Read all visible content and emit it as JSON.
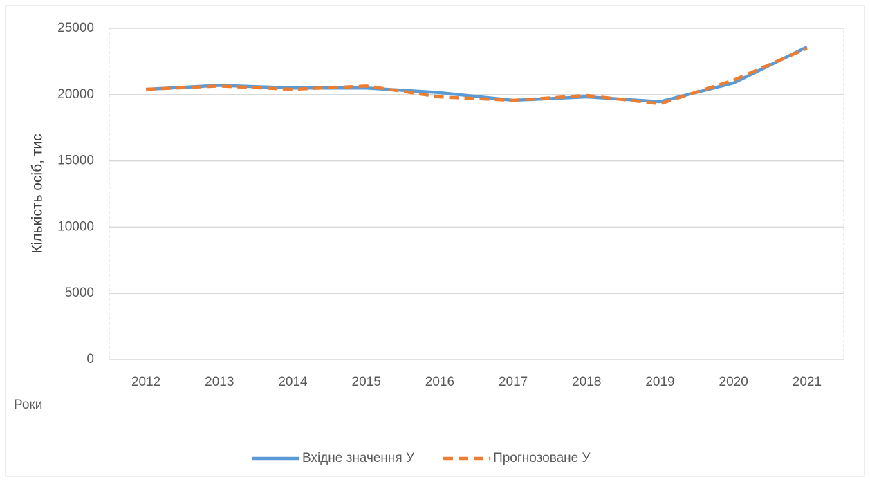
{
  "chart_data": {
    "type": "line",
    "categories": [
      "2012",
      "2013",
      "2014",
      "2015",
      "2016",
      "2017",
      "2018",
      "2019",
      "2020",
      "2021"
    ],
    "series": [
      {
        "name": "Вхідне значення У",
        "color": "#5b9bd5",
        "dash": false,
        "values": [
          20400,
          20700,
          20500,
          20500,
          20150,
          19570,
          19830,
          19470,
          20880,
          23590
        ]
      },
      {
        "name": "Прогнозоване У",
        "color": "#ed7d31",
        "dash": true,
        "values": [
          20400,
          20650,
          20400,
          20650,
          19830,
          19570,
          19940,
          19310,
          21090,
          23490
        ]
      }
    ],
    "xlabel": "Роки",
    "ylabel": "Кількість осіб, тис",
    "ylim": [
      0,
      25000
    ],
    "yticks": [
      0,
      5000,
      10000,
      15000,
      20000,
      25000
    ],
    "grid": true,
    "legend": "bottom"
  }
}
